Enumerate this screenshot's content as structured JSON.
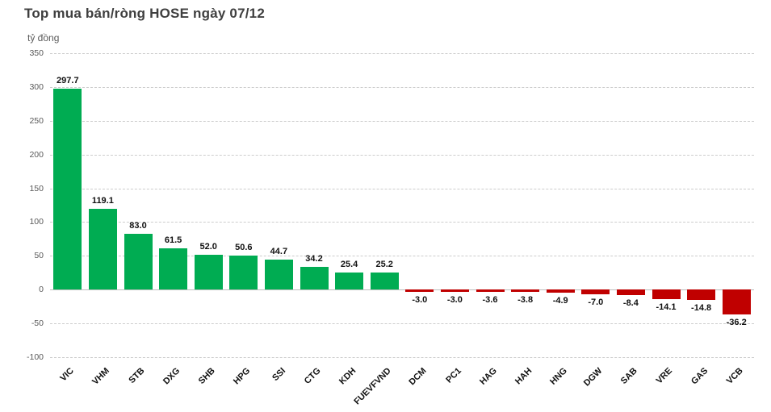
{
  "header": {
    "title": "Top mua bán/ròng HOSE ngày 07/12",
    "unit_label": "tỷ đồng"
  },
  "chart_data": {
    "type": "bar",
    "title": "Top mua bán/ròng HOSE ngày 07/12",
    "ylabel": "tỷ đồng",
    "xlabel": "",
    "categories": [
      "VIC",
      "VHM",
      "STB",
      "DXG",
      "SHB",
      "HPG",
      "SSI",
      "CTG",
      "KDH",
      "FUEVFVND",
      "DCM",
      "PC1",
      "HAG",
      "HAH",
      "HNG",
      "DGW",
      "SAB",
      "VRE",
      "GAS",
      "VCB"
    ],
    "values": [
      297.7,
      119.1,
      83.0,
      61.5,
      52.0,
      50.6,
      44.7,
      34.2,
      25.4,
      25.2,
      -3.0,
      -3.0,
      -3.6,
      -3.8,
      -4.9,
      -7.0,
      -8.4,
      -14.1,
      -14.8,
      -36.2
    ],
    "ylim": [
      -100,
      350
    ],
    "yticks": [
      350,
      300,
      250,
      200,
      150,
      100,
      50,
      0,
      -50,
      -100
    ],
    "grid": true,
    "legend_position": "none",
    "value_label_decimals": 1,
    "category_label_rotation_deg": 45,
    "colors": {
      "positive": "#00AC52",
      "negative": "#C00000",
      "title_text": "#3F3F3F",
      "axis_text": "#595959",
      "data_label_text": "#111111",
      "gridline": "#CCCCCC",
      "zero_line": "#BDBDBD",
      "background": "#FFFFFF"
    }
  }
}
